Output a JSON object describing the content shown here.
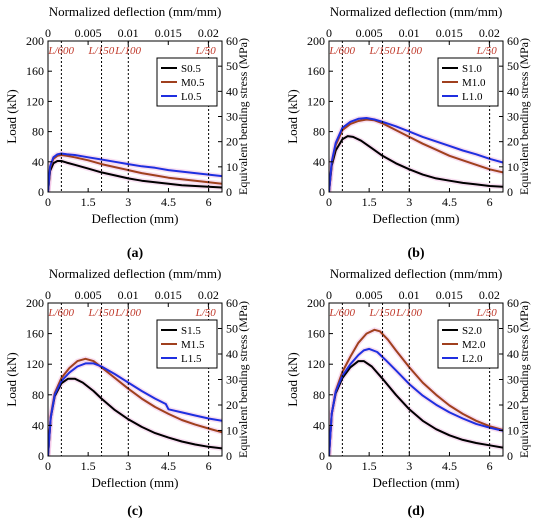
{
  "figure": {
    "panels": [
      {
        "label": "(a)"
      },
      {
        "label": "(b)"
      },
      {
        "label": "(c)"
      },
      {
        "label": "(d)"
      }
    ]
  },
  "colors": {
    "S": "#000000",
    "M": "#a0401e",
    "L": "#1f2fe0",
    "ref_line": "#000000",
    "ref_label": "#c0392b",
    "halo": "#f3c4e6"
  },
  "chart_data": [
    {
      "type": "line",
      "panel": "(a)",
      "xlabel": "Deflection (mm)",
      "ylabel": "Load (kN)",
      "x2label": "Normalized deflection (mm/mm)",
      "y2label": "Equivalent bending stress (MPa)",
      "xlim": [
        0,
        6.5
      ],
      "ylim": [
        0,
        200
      ],
      "xticks": [
        "0",
        "1.5",
        "3",
        "4.5",
        "6"
      ],
      "yticks": [
        "0",
        "40",
        "80",
        "120",
        "160",
        "200"
      ],
      "x2lim": [
        0,
        0.0217
      ],
      "x2ticks": [
        "0",
        "0.005",
        "0.01",
        "0.015",
        "0.02"
      ],
      "y2lim": [
        0,
        60
      ],
      "y2ticks": [
        "0",
        "10",
        "20",
        "30",
        "40",
        "50",
        "60"
      ],
      "ref_lines": [
        {
          "label": "L/600",
          "x": 0.5
        },
        {
          "label": "L/150",
          "x": 2.0
        },
        {
          "label": "L/100",
          "x": 3.0
        },
        {
          "label": "L/50",
          "x": 6.0
        }
      ],
      "legend_position": "top-right",
      "series": [
        {
          "name": "S0.5",
          "color": "#000000",
          "x": [
            0,
            0.08,
            0.2,
            0.35,
            0.5,
            0.7,
            1.0,
            1.5,
            2.0,
            2.5,
            3.0,
            3.5,
            4.0,
            4.5,
            5.0,
            5.5,
            6.0,
            6.5
          ],
          "y": [
            0,
            28,
            38,
            41,
            41,
            39,
            36,
            31,
            26,
            22,
            18,
            15,
            13,
            11,
            9,
            8,
            7,
            6
          ]
        },
        {
          "name": "M0.5",
          "color": "#a0401e",
          "x": [
            0,
            0.08,
            0.2,
            0.35,
            0.5,
            0.7,
            1.0,
            1.5,
            2.0,
            2.5,
            3.0,
            3.5,
            4.0,
            4.5,
            5.0,
            5.5,
            6.0,
            6.5
          ],
          "y": [
            0,
            32,
            44,
            48,
            49,
            48,
            46,
            42,
            37,
            33,
            29,
            25,
            22,
            19,
            17,
            15,
            13,
            11
          ]
        },
        {
          "name": "L0.5",
          "color": "#1f2fe0",
          "x": [
            0,
            0.08,
            0.2,
            0.35,
            0.5,
            0.7,
            1.0,
            1.5,
            2.0,
            2.5,
            3.0,
            3.5,
            4.0,
            4.5,
            5.0,
            5.5,
            6.0,
            6.5
          ],
          "y": [
            0,
            34,
            46,
            50,
            51,
            50,
            49,
            46,
            43,
            40,
            37,
            34,
            32,
            29,
            27,
            25,
            23,
            21
          ]
        }
      ]
    },
    {
      "type": "line",
      "panel": "(b)",
      "xlabel": "Deflection (mm)",
      "ylabel": "Load (kN)",
      "x2label": "Normalized deflection (mm/mm)",
      "y2label": "Equivalent bending stress (MPa)",
      "xlim": [
        0,
        6.5
      ],
      "ylim": [
        0,
        200
      ],
      "xticks": [
        "0",
        "1.5",
        "3",
        "4.5",
        "6"
      ],
      "yticks": [
        "0",
        "40",
        "80",
        "120",
        "160",
        "200"
      ],
      "x2lim": [
        0,
        0.0217
      ],
      "x2ticks": [
        "0",
        "0.005",
        "0.01",
        "0.015",
        "0.02"
      ],
      "y2lim": [
        0,
        60
      ],
      "y2ticks": [
        "0",
        "10",
        "20",
        "30",
        "40",
        "50",
        "60"
      ],
      "ref_lines": [
        {
          "label": "L/600",
          "x": 0.5
        },
        {
          "label": "L/150",
          "x": 2.0
        },
        {
          "label": "L/100",
          "x": 3.0
        },
        {
          "label": "L/50",
          "x": 6.0
        }
      ],
      "legend_position": "top-right",
      "series": [
        {
          "name": "S1.0",
          "color": "#000000",
          "x": [
            0,
            0.1,
            0.25,
            0.5,
            0.7,
            0.9,
            1.2,
            1.6,
            2.0,
            2.5,
            3.0,
            3.5,
            4.0,
            4.5,
            5.0,
            5.5,
            6.0,
            6.5
          ],
          "y": [
            0,
            35,
            55,
            70,
            74,
            73,
            68,
            58,
            48,
            38,
            30,
            23,
            18,
            15,
            12,
            10,
            8,
            7
          ]
        },
        {
          "name": "M1.0",
          "color": "#a0401e",
          "x": [
            0,
            0.1,
            0.25,
            0.5,
            0.8,
            1.1,
            1.4,
            1.7,
            2.0,
            2.5,
            3.0,
            3.5,
            4.0,
            4.5,
            5.0,
            5.5,
            6.0,
            6.5
          ],
          "y": [
            0,
            38,
            62,
            82,
            90,
            94,
            96,
            95,
            91,
            82,
            73,
            64,
            56,
            48,
            42,
            36,
            30,
            26
          ]
        },
        {
          "name": "L1.0",
          "color": "#1f2fe0",
          "x": [
            0,
            0.1,
            0.25,
            0.5,
            0.8,
            1.1,
            1.4,
            1.7,
            2.0,
            2.5,
            3.0,
            3.5,
            4.0,
            4.5,
            5.0,
            5.5,
            6.0,
            6.5
          ],
          "y": [
            0,
            40,
            65,
            85,
            93,
            97,
            98,
            96,
            93,
            87,
            80,
            73,
            67,
            61,
            55,
            50,
            44,
            39
          ]
        }
      ]
    },
    {
      "type": "line",
      "panel": "(c)",
      "xlabel": "Deflection (mm)",
      "ylabel": "Load (kN)",
      "x2label": "Normalized deflection (mm/mm)",
      "y2label": "Equivalent bending stress (MPa)",
      "xlim": [
        0,
        6.5
      ],
      "ylim": [
        0,
        200
      ],
      "xticks": [
        "0",
        "1.5",
        "3",
        "4.5",
        "6"
      ],
      "yticks": [
        "0",
        "40",
        "80",
        "120",
        "160",
        "200"
      ],
      "x2lim": [
        0,
        0.0217
      ],
      "x2ticks": [
        "0",
        "0.005",
        "0.01",
        "0.015",
        "0.02"
      ],
      "y2lim": [
        0,
        60
      ],
      "y2ticks": [
        "0",
        "10",
        "20",
        "30",
        "40",
        "50",
        "60"
      ],
      "ref_lines": [
        {
          "label": "L/600",
          "x": 0.5
        },
        {
          "label": "L/150",
          "x": 2.0
        },
        {
          "label": "L/100",
          "x": 3.0
        },
        {
          "label": "L/50",
          "x": 6.0
        }
      ],
      "legend_position": "top-right",
      "series": [
        {
          "name": "S1.5",
          "color": "#000000",
          "x": [
            0,
            0.1,
            0.25,
            0.5,
            0.75,
            1.0,
            1.3,
            1.7,
            2.0,
            2.5,
            3.0,
            3.5,
            4.0,
            4.5,
            5.0,
            5.5,
            6.0,
            6.5
          ],
          "y": [
            0,
            50,
            78,
            95,
            101,
            101,
            96,
            85,
            75,
            60,
            48,
            38,
            30,
            24,
            19,
            15,
            12,
            10
          ]
        },
        {
          "name": "M1.5",
          "color": "#a0401e",
          "x": [
            0,
            0.1,
            0.25,
            0.5,
            0.8,
            1.1,
            1.4,
            1.7,
            2.0,
            2.5,
            3.0,
            3.5,
            4.0,
            4.5,
            5.0,
            5.5,
            6.0,
            6.5
          ],
          "y": [
            0,
            52,
            82,
            102,
            115,
            124,
            127,
            124,
            116,
            102,
            88,
            75,
            64,
            55,
            47,
            41,
            36,
            31
          ]
        },
        {
          "name": "L1.5",
          "color": "#1f2fe0",
          "x": [
            0,
            0.1,
            0.25,
            0.5,
            0.8,
            1.1,
            1.4,
            1.7,
            2.0,
            2.5,
            3.0,
            3.5,
            4.0,
            4.4,
            4.5,
            5.0,
            5.5,
            6.0,
            6.5
          ],
          "y": [
            0,
            50,
            80,
            98,
            109,
            117,
            121,
            121,
            117,
            107,
            96,
            85,
            75,
            68,
            61,
            57,
            53,
            49,
            46
          ]
        }
      ]
    },
    {
      "type": "line",
      "panel": "(d)",
      "xlabel": "Deflection (mm)",
      "ylabel": "Load (kN)",
      "x2label": "Normalized deflection (mm/mm)",
      "y2label": "Equivalent bending stress (MPa)",
      "xlim": [
        0,
        6.5
      ],
      "ylim": [
        0,
        200
      ],
      "xticks": [
        "0",
        "1.5",
        "3",
        "4.5",
        "6"
      ],
      "yticks": [
        "0",
        "40",
        "80",
        "120",
        "160",
        "200"
      ],
      "x2lim": [
        0,
        0.0217
      ],
      "x2ticks": [
        "0",
        "0.005",
        "0.01",
        "0.015",
        "0.02"
      ],
      "y2lim": [
        0,
        60
      ],
      "y2ticks": [
        "0",
        "10",
        "20",
        "30",
        "40",
        "50",
        "60"
      ],
      "ref_lines": [
        {
          "label": "L/600",
          "x": 0.5
        },
        {
          "label": "L/150",
          "x": 2.0
        },
        {
          "label": "L/100",
          "x": 3.0
        },
        {
          "label": "L/50",
          "x": 6.0
        }
      ],
      "legend_position": "top-right",
      "series": [
        {
          "name": "S2.0",
          "color": "#000000",
          "x": [
            0,
            0.1,
            0.25,
            0.5,
            0.8,
            1.1,
            1.3,
            1.6,
            2.0,
            2.5,
            3.0,
            3.5,
            4.0,
            4.5,
            5.0,
            5.5,
            6.0,
            6.5
          ],
          "y": [
            0,
            55,
            82,
            102,
            116,
            124,
            124,
            117,
            101,
            80,
            61,
            46,
            35,
            27,
            21,
            17,
            14,
            11
          ]
        },
        {
          "name": "M2.0",
          "color": "#a0401e",
          "x": [
            0,
            0.1,
            0.25,
            0.5,
            0.8,
            1.1,
            1.4,
            1.7,
            1.9,
            2.2,
            2.5,
            3.0,
            3.5,
            4.0,
            4.5,
            5.0,
            5.5,
            6.0,
            6.5
          ],
          "y": [
            0,
            55,
            85,
            110,
            130,
            148,
            160,
            165,
            163,
            152,
            138,
            116,
            96,
            80,
            66,
            55,
            46,
            39,
            34
          ]
        },
        {
          "name": "L2.0",
          "color": "#1f2fe0",
          "x": [
            0,
            0.1,
            0.25,
            0.5,
            0.8,
            1.1,
            1.3,
            1.5,
            1.8,
            2.1,
            2.5,
            3.0,
            3.5,
            4.0,
            4.5,
            5.0,
            5.5,
            6.0,
            6.5
          ],
          "y": [
            0,
            55,
            84,
            105,
            120,
            132,
            138,
            140,
            136,
            126,
            112,
            94,
            79,
            67,
            57,
            49,
            42,
            37,
            33
          ]
        }
      ]
    }
  ]
}
